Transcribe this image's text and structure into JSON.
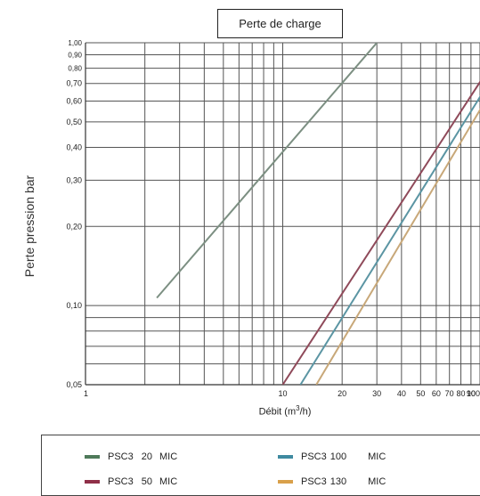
{
  "chart_data": {
    "type": "line",
    "title": "Perte de charge",
    "xlabel": "Débit (m",
    "xlabel_sup": "3",
    "xlabel_end": "/h)",
    "ylabel": "Perte pression bar",
    "x_scale": "log",
    "y_scale": "log",
    "xlim": [
      1,
      100
    ],
    "ylim": [
      0.05,
      1.0
    ],
    "x_tick_labels": [
      {
        "value": 1,
        "label": "1"
      },
      {
        "value": 10,
        "label": "10"
      },
      {
        "value": 20,
        "label": "20"
      },
      {
        "value": 30,
        "label": "30"
      },
      {
        "value": 40,
        "label": "40"
      },
      {
        "value": 50,
        "label": "50"
      },
      {
        "value": 60,
        "label": "60"
      },
      {
        "value": 70,
        "label": "70"
      },
      {
        "value": 80,
        "label": "80"
      },
      {
        "value": 90,
        "label": "90"
      },
      {
        "value": 100,
        "label": "100"
      }
    ],
    "y_tick_labels": [
      {
        "value": 0.05,
        "label": "0,05"
      },
      {
        "value": 0.1,
        "label": "0,10"
      },
      {
        "value": 0.2,
        "label": "0,20"
      },
      {
        "value": 0.3,
        "label": "0,30"
      },
      {
        "value": 0.4,
        "label": "0,40"
      },
      {
        "value": 0.5,
        "label": "0,50"
      },
      {
        "value": 0.6,
        "label": "0,60"
      },
      {
        "value": 0.7,
        "label": "0,70"
      },
      {
        "value": 0.8,
        "label": "0,80"
      },
      {
        "value": 0.9,
        "label": "0,90"
      },
      {
        "value": 1.0,
        "label": "1,00"
      }
    ],
    "grid": true,
    "legend_position": "bottom",
    "series": [
      {
        "name": "PSC3",
        "size": "20",
        "unit": "MIC",
        "color": "#4f7a5a",
        "line_color": "#7c8f82",
        "points": [
          [
            2.3,
            0.107
          ],
          [
            30,
            1.0
          ]
        ]
      },
      {
        "name": "PSC3",
        "size": "50",
        "unit": "MIC",
        "color": "#8f2f48",
        "line_color": "#8f4a5a",
        "points": [
          [
            10,
            0.05
          ],
          [
            105,
            0.75
          ]
        ]
      },
      {
        "name": "PSC3",
        "size": "100",
        "unit": "MIC",
        "color": "#3f8aa0",
        "line_color": "#5b95a3",
        "points": [
          [
            12.3,
            0.05
          ],
          [
            105,
            0.66
          ]
        ]
      },
      {
        "name": "PSC3",
        "size": "130",
        "unit": "MIC",
        "color": "#d9a04a",
        "line_color": "#c8a879",
        "points": [
          [
            14.8,
            0.05
          ],
          [
            105,
            0.59
          ]
        ]
      }
    ]
  }
}
